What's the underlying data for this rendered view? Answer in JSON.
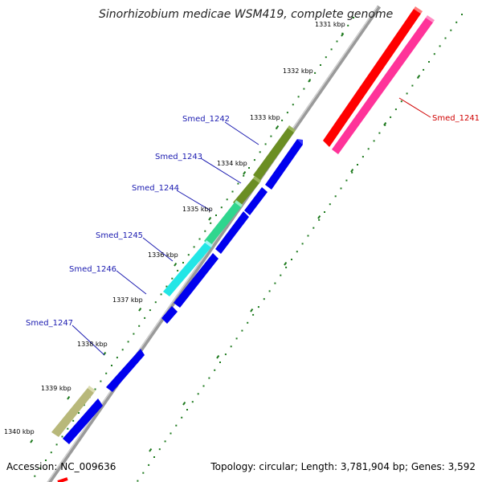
{
  "title": "Sinorhizobium medicae WSM419, complete genome",
  "tick_labels": [
    {
      "label": "1331 kbp",
      "kbp": 1331
    },
    {
      "label": "1332 kbp",
      "kbp": 1332
    },
    {
      "label": "1333 kbp",
      "kbp": 1333
    },
    {
      "label": "1334 kbp",
      "kbp": 1334
    },
    {
      "label": "1335 kbp",
      "kbp": 1335
    },
    {
      "label": "1336 kbp",
      "kbp": 1336
    },
    {
      "label": "1337 kbp",
      "kbp": 1337
    },
    {
      "label": "1338 kbp",
      "kbp": 1338
    },
    {
      "label": "1339 kbp",
      "kbp": 1339
    },
    {
      "label": "1340 kbp",
      "kbp": 1340
    }
  ],
  "genes": [
    {
      "name": "Smed_1241",
      "label_color": "#d00000",
      "color": "#ff0000",
      "second_color": "#ff3399"
    },
    {
      "name": "Smed_1242",
      "label_color": "#1a1ab0",
      "color": "#6b8e23"
    },
    {
      "name": "Smed_1243",
      "label_color": "#1a1ab0",
      "color": "#6b8e23"
    },
    {
      "name": "Smed_1244",
      "label_color": "#1a1ab0",
      "color": "#2fd68e"
    },
    {
      "name": "Smed_1245",
      "label_color": "#1a1ab0",
      "color": "#22e6e6"
    },
    {
      "name": "Smed_1246",
      "label_color": "#1a1ab0",
      "color": "#0000ee"
    },
    {
      "name": "Smed_1247",
      "label_color": "#1a1ab0",
      "color": "#b8b87a"
    }
  ],
  "colors": {
    "backbone": "#9a9a9a",
    "tick_dots": "#1e7a1e",
    "cds_blue": "#0000ee",
    "smed_1241_red": "#ff0000",
    "smed_1241_pink": "#ff3399"
  },
  "footer": {
    "accession": "Accession: NC_009636",
    "summary": "Topology: circular; Length: 3,781,904 bp; Genes: 3,592"
  }
}
